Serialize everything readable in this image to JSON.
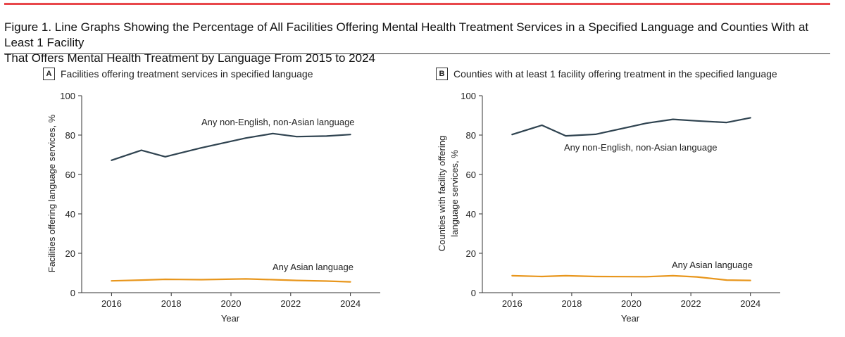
{
  "figure": {
    "title_line1": "Figure 1. Line Graphs Showing the Percentage of All Facilities Offering Mental Health Treatment Services in a Specified Language and Counties With at Least 1 Facility",
    "title_line2": "That Offers Mental Health Treatment by Language From 2015 to 2024",
    "accent_color": "#e8474b"
  },
  "chart_data": [
    {
      "type": "line",
      "panel_letter": "A",
      "title": "Facilities offering treatment services in specified language",
      "xlabel": "Year",
      "ylabel": "Facilities offering language services, %",
      "xlim": [
        2015,
        2025
      ],
      "ylim": [
        0,
        100
      ],
      "xticks": [
        2016,
        2018,
        2020,
        2022,
        2024
      ],
      "yticks": [
        0,
        20,
        40,
        60,
        80,
        100
      ],
      "grid": false,
      "series": [
        {
          "name": "Any non-English, non-Asian language",
          "color": "#2f4350",
          "x": [
            2016,
            2017,
            2017.8,
            2019,
            2020.5,
            2021.4,
            2022.2,
            2023.2,
            2024
          ],
          "y": [
            67.2,
            72.3,
            69.0,
            73.5,
            78.5,
            80.8,
            79.2,
            79.5,
            80.3
          ]
        },
        {
          "name": "Any Asian language",
          "color": "#e8961c",
          "x": [
            2016,
            2017,
            2017.8,
            2019,
            2020.5,
            2021.4,
            2022.2,
            2023.2,
            2024
          ],
          "y": [
            6.0,
            6.4,
            6.8,
            6.6,
            7.0,
            6.6,
            6.2,
            5.9,
            5.5
          ]
        }
      ]
    },
    {
      "type": "line",
      "panel_letter": "B",
      "title": "Counties with at least 1 facility offering treatment in the specified language",
      "xlabel": "Year",
      "ylabel_line1": "Counties with facility offering",
      "ylabel_line2": "language services, %",
      "xlim": [
        2015,
        2025
      ],
      "ylim": [
        0,
        100
      ],
      "xticks": [
        2016,
        2018,
        2020,
        2022,
        2024
      ],
      "yticks": [
        0,
        20,
        40,
        60,
        80,
        100
      ],
      "grid": false,
      "series": [
        {
          "name": "Any non-English, non-Asian language",
          "color": "#2f4350",
          "x": [
            2016,
            2017,
            2017.8,
            2018.8,
            2020.5,
            2021.4,
            2022.2,
            2023.2,
            2024
          ],
          "y": [
            80.3,
            85.0,
            79.6,
            80.4,
            86.0,
            88.0,
            87.2,
            86.4,
            88.8
          ]
        },
        {
          "name": "Any Asian language",
          "color": "#e8961c",
          "x": [
            2016,
            2017,
            2017.8,
            2018.8,
            2020.5,
            2021.4,
            2022.2,
            2023.2,
            2024
          ],
          "y": [
            8.6,
            8.2,
            8.6,
            8.2,
            8.1,
            8.6,
            8.0,
            6.4,
            6.2
          ]
        }
      ]
    }
  ]
}
